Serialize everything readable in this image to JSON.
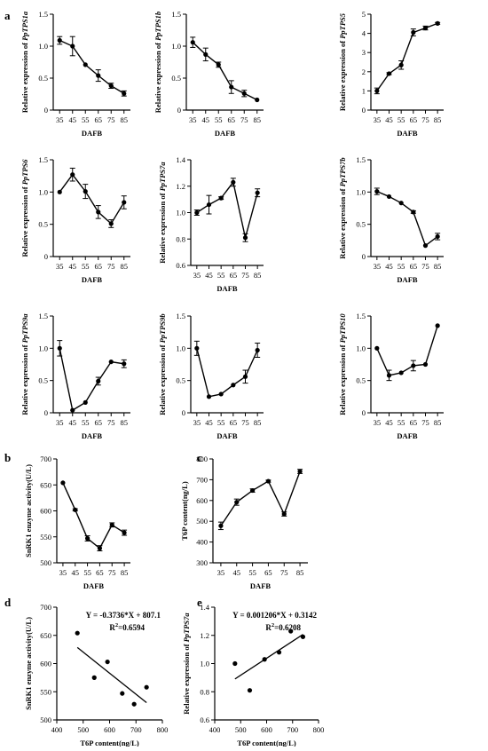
{
  "chart_data": [
    {
      "id": "a1",
      "panel_letter": "a",
      "type": "line",
      "x": [
        35,
        45,
        55,
        65,
        75,
        85
      ],
      "values": [
        1.09,
        1.0,
        0.71,
        0.54,
        0.38,
        0.26
      ],
      "err": [
        0.06,
        0.15,
        0.01,
        0.09,
        0.04,
        0.04
      ],
      "xlabel": "DAFB",
      "ylabel_prefix": "Relative expression of ",
      "ylabel_italic": "PpTPS1a",
      "ylim": [
        0,
        1.5
      ],
      "yticks": [
        0,
        0.5,
        1.0,
        1.5
      ],
      "yticklabels": [
        "0",
        "0.5",
        "1.0",
        "1.5"
      ]
    },
    {
      "id": "a2",
      "type": "line",
      "x": [
        35,
        45,
        55,
        65,
        75,
        85
      ],
      "values": [
        1.06,
        0.87,
        0.71,
        0.36,
        0.26,
        0.16
      ],
      "err": [
        0.08,
        0.1,
        0.04,
        0.1,
        0.05,
        0.01
      ],
      "xlabel": "DAFB",
      "ylabel_prefix": "Relative expression of ",
      "ylabel_italic": "PpTPS1b",
      "ylim": [
        0,
        1.5
      ],
      "yticks": [
        0,
        0.5,
        1.0,
        1.5
      ],
      "yticklabels": [
        "0",
        "0.5",
        "1.0",
        "1.5"
      ]
    },
    {
      "id": "a3",
      "type": "line",
      "x": [
        35,
        45,
        55,
        65,
        75,
        85
      ],
      "values": [
        1.0,
        1.9,
        2.35,
        4.05,
        4.28,
        4.52
      ],
      "err": [
        0.15,
        0.05,
        0.22,
        0.18,
        0.1,
        0.05
      ],
      "xlabel": "DAFB",
      "ylabel_prefix": "Relative expression of ",
      "ylabel_italic": "PpTPS5",
      "ylim": [
        0,
        5
      ],
      "yticks": [
        0,
        1,
        2,
        3,
        4,
        5
      ],
      "yticklabels": [
        "0",
        "1",
        "2",
        "3",
        "4",
        "5"
      ]
    },
    {
      "id": "a4",
      "type": "line",
      "x": [
        35,
        45,
        55,
        65,
        75,
        85
      ],
      "values": [
        1.0,
        1.27,
        1.01,
        0.69,
        0.51,
        0.84
      ],
      "err": [
        0.01,
        0.1,
        0.11,
        0.1,
        0.06,
        0.1
      ],
      "xlabel": "DAFB",
      "ylabel_prefix": "Relative expression of ",
      "ylabel_italic": "PpTPS6",
      "ylim": [
        0,
        1.5
      ],
      "yticks": [
        0,
        0.5,
        1.0,
        1.5
      ],
      "yticklabels": [
        "0",
        "0.5",
        "1.0",
        "1.5"
      ]
    },
    {
      "id": "a5",
      "type": "line",
      "x": [
        35,
        45,
        55,
        65,
        75,
        85
      ],
      "values": [
        1.0,
        1.06,
        1.11,
        1.23,
        0.81,
        1.15
      ],
      "err": [
        0.02,
        0.07,
        0.01,
        0.03,
        0.03,
        0.03
      ],
      "xlabel": "DAFB",
      "ylabel_prefix": "Relative expression of ",
      "ylabel_italic": "PpTPS7a",
      "ylim": [
        0.6,
        1.4
      ],
      "yticks": [
        0.6,
        0.8,
        1.0,
        1.2,
        1.4
      ],
      "yticklabels": [
        "0.6",
        "0.8",
        "1.0",
        "1.2",
        "1.4"
      ]
    },
    {
      "id": "a6",
      "type": "line",
      "x": [
        35,
        45,
        55,
        65,
        75,
        85
      ],
      "values": [
        1.01,
        0.93,
        0.83,
        0.69,
        0.17,
        0.31
      ],
      "err": [
        0.05,
        0.01,
        0.01,
        0.02,
        0.01,
        0.05
      ],
      "xlabel": "DAFB",
      "ylabel_prefix": "Relative expression of ",
      "ylabel_italic": "PpTPS7b",
      "ylim": [
        0,
        1.5
      ],
      "yticks": [
        0,
        0.5,
        1.0,
        1.5
      ],
      "yticklabels": [
        "0",
        "0.5",
        "1.0",
        "1.5"
      ]
    },
    {
      "id": "a7",
      "type": "line",
      "x": [
        35,
        45,
        55,
        65,
        75,
        85
      ],
      "values": [
        1.0,
        0.04,
        0.16,
        0.49,
        0.79,
        0.76
      ],
      "err": [
        0.12,
        0.01,
        0.01,
        0.06,
        0.01,
        0.06
      ],
      "xlabel": "DAFB",
      "ylabel_prefix": "Relative expression of ",
      "ylabel_italic": "PpTPS9a",
      "ylim": [
        0,
        1.5
      ],
      "yticks": [
        0,
        0.5,
        1.0,
        1.5
      ],
      "yticklabels": [
        "0",
        "0.5",
        "1.0",
        "1.5"
      ]
    },
    {
      "id": "a8",
      "type": "line",
      "x": [
        35,
        45,
        55,
        65,
        75,
        85
      ],
      "values": [
        1.0,
        0.25,
        0.29,
        0.43,
        0.56,
        0.97
      ],
      "err": [
        0.11,
        0.01,
        0.01,
        0.01,
        0.1,
        0.11
      ],
      "xlabel": "DAFB",
      "ylabel_prefix": "Relative expression of ",
      "ylabel_italic": "PpTPS9b",
      "ylim": [
        0,
        1.5
      ],
      "yticks": [
        0,
        0.5,
        1.0,
        1.5
      ],
      "yticklabels": [
        "0",
        "0.5",
        "1.0",
        "1.5"
      ]
    },
    {
      "id": "a9",
      "type": "line",
      "x": [
        35,
        45,
        55,
        65,
        75,
        85
      ],
      "values": [
        1.0,
        0.58,
        0.62,
        0.73,
        0.75,
        1.35
      ],
      "err": [
        0.01,
        0.08,
        0.01,
        0.08,
        0.01,
        0.01
      ],
      "xlabel": "DAFB",
      "ylabel_prefix": "Relative expression of ",
      "ylabel_italic": "PpTPS10",
      "ylim": [
        0,
        1.5
      ],
      "yticks": [
        0,
        0.5,
        1.0,
        1.5
      ],
      "yticklabels": [
        "0",
        "0.5",
        "1.0",
        "1.5"
      ]
    },
    {
      "id": "b",
      "panel_letter": "b",
      "type": "line",
      "x": [
        35,
        45,
        55,
        65,
        75,
        85
      ],
      "values": [
        654,
        602,
        547,
        528,
        573,
        558
      ],
      "err": [
        1,
        2,
        5,
        5,
        4,
        5
      ],
      "xlabel": "DAFB",
      "ylabel_prefix": "SnRK1 enzyme activity(U/L)",
      "ylabel_italic": "",
      "ylim": [
        500,
        700
      ],
      "yticks": [
        500,
        550,
        600,
        650,
        700
      ],
      "yticklabels": [
        "500",
        "550",
        "600",
        "650",
        "700"
      ]
    },
    {
      "id": "c",
      "panel_letter": "c",
      "type": "line",
      "x": [
        35,
        45,
        55,
        65,
        75,
        85
      ],
      "values": [
        478,
        592,
        648,
        693,
        535,
        740
      ],
      "err": [
        18,
        15,
        8,
        5,
        10,
        10
      ],
      "xlabel": "DAFB",
      "ylabel_prefix": "T6P content(ng/L)",
      "ylabel_italic": "",
      "ylim": [
        300,
        800
      ],
      "yticks": [
        300,
        400,
        500,
        600,
        700,
        800
      ],
      "yticklabels": [
        "300",
        "400",
        "500",
        "600",
        "700",
        "800"
      ]
    },
    {
      "id": "d",
      "panel_letter": "d",
      "type": "scatter",
      "points": [
        [
          478,
          654
        ],
        [
          542,
          575
        ],
        [
          592,
          603
        ],
        [
          648,
          547
        ],
        [
          693,
          528
        ],
        [
          740,
          558
        ]
      ],
      "fit": {
        "slope": -0.3736,
        "intercept": 807.1,
        "x_range": [
          478,
          740
        ]
      },
      "equation": "Y = -0.3736*X + 807.1",
      "r2_prefix": "R",
      "r2_sup": "2",
      "r2_value": "=0.6594",
      "xlabel": "T6P content(ng/L)",
      "ylabel_prefix": "SnRK1 enzyme activity(U/L)",
      "ylabel_italic": "",
      "xlim": [
        400,
        800
      ],
      "xticks": [
        400,
        500,
        600,
        700,
        800
      ],
      "xticklabels": [
        "400",
        "500",
        "600",
        "700",
        "800"
      ],
      "ylim": [
        500,
        700
      ],
      "yticks": [
        500,
        550,
        600,
        650,
        700
      ],
      "yticklabels": [
        "500",
        "550",
        "600",
        "650",
        "700"
      ]
    },
    {
      "id": "e",
      "panel_letter": "e",
      "type": "scatter",
      "points": [
        [
          478,
          1.0
        ],
        [
          535,
          0.81
        ],
        [
          592,
          1.03
        ],
        [
          648,
          1.08
        ],
        [
          693,
          1.23
        ],
        [
          740,
          1.19
        ]
      ],
      "fit": {
        "slope": 0.001206,
        "intercept": 0.3142,
        "x_range": [
          478,
          740
        ]
      },
      "equation": "Y = 0.001206*X + 0.3142",
      "r2_prefix": "R",
      "r2_sup": "2",
      "r2_value": "=0.6208",
      "xlabel": "T6P content(ng/L)",
      "ylabel_prefix": "Relative expression of ",
      "ylabel_italic": "PpTPS7a",
      "xlim": [
        400,
        800
      ],
      "xticks": [
        400,
        500,
        600,
        700,
        800
      ],
      "xticklabels": [
        "400",
        "500",
        "600",
        "700",
        "800"
      ],
      "ylim": [
        0.6,
        1.4
      ],
      "yticks": [
        0.6,
        0.8,
        1.0,
        1.2,
        1.4
      ],
      "yticklabels": [
        "0.6",
        "0.8",
        "1.0",
        "1.2",
        "1.4"
      ]
    }
  ]
}
